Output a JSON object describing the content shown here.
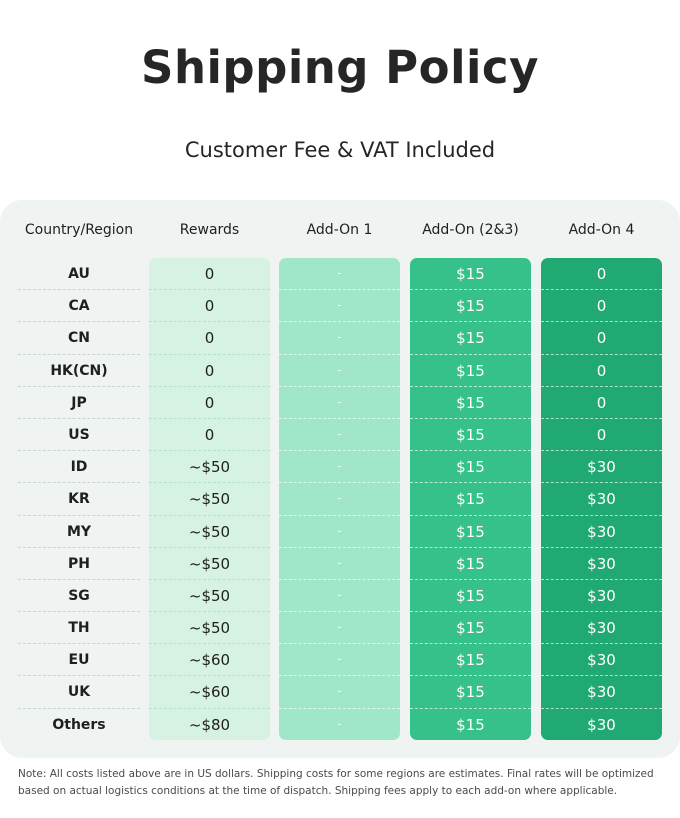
{
  "title": "Shipping Policy",
  "subtitle": "Customer Fee & VAT Included",
  "table": {
    "headers": [
      "Country/Region",
      "Rewards",
      "Add-On 1",
      "Add-On (2&3)",
      "Add-On 4"
    ],
    "rows": [
      {
        "region": "AU",
        "rewards": "0",
        "addon1": "-",
        "addon23": "$15",
        "addon4": "0"
      },
      {
        "region": "CA",
        "rewards": "0",
        "addon1": "-",
        "addon23": "$15",
        "addon4": "0"
      },
      {
        "region": "CN",
        "rewards": "0",
        "addon1": "-",
        "addon23": "$15",
        "addon4": "0"
      },
      {
        "region": "HK(CN)",
        "rewards": "0",
        "addon1": "-",
        "addon23": "$15",
        "addon4": "0"
      },
      {
        "region": "JP",
        "rewards": "0",
        "addon1": "-",
        "addon23": "$15",
        "addon4": "0"
      },
      {
        "region": "US",
        "rewards": "0",
        "addon1": "-",
        "addon23": "$15",
        "addon4": "0"
      },
      {
        "region": "ID",
        "rewards": "~$50",
        "addon1": "-",
        "addon23": "$15",
        "addon4": "$30"
      },
      {
        "region": "KR",
        "rewards": "~$50",
        "addon1": "-",
        "addon23": "$15",
        "addon4": "$30"
      },
      {
        "region": "MY",
        "rewards": "~$50",
        "addon1": "-",
        "addon23": "$15",
        "addon4": "$30"
      },
      {
        "region": "PH",
        "rewards": "~$50",
        "addon1": "-",
        "addon23": "$15",
        "addon4": "$30"
      },
      {
        "region": "SG",
        "rewards": "~$50",
        "addon1": "-",
        "addon23": "$15",
        "addon4": "$30"
      },
      {
        "region": "TH",
        "rewards": "~$50",
        "addon1": "-",
        "addon23": "$15",
        "addon4": "$30"
      },
      {
        "region": "EU",
        "rewards": "~$60",
        "addon1": "-",
        "addon23": "$15",
        "addon4": "$30"
      },
      {
        "region": "UK",
        "rewards": "~$60",
        "addon1": "-",
        "addon23": "$15",
        "addon4": "$30"
      },
      {
        "region": "Others",
        "rewards": "~$80",
        "addon1": "-",
        "addon23": "$15",
        "addon4": "$30"
      }
    ]
  },
  "note": "Note: All costs listed above are in US dollars. Shipping costs for some regions are estimates. Final rates will be optimized based on actual logistics conditions at the time of dispatch. Shipping fees apply to each add-on where applicable.",
  "colors": {
    "panel": "#eff3f1",
    "rewards_column": "#d6f2e3",
    "addon1_column": "#a0e6c9",
    "addon23_column": "#35c189",
    "addon4_column": "#20a973"
  }
}
